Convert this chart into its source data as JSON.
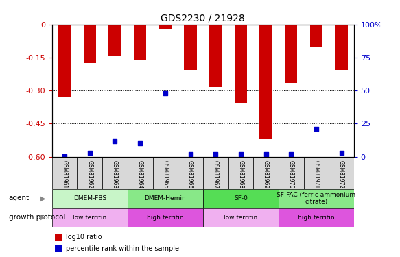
{
  "title": "GDS2230 / 21928",
  "samples": [
    "GSM81961",
    "GSM81962",
    "GSM81963",
    "GSM81964",
    "GSM81965",
    "GSM81966",
    "GSM81967",
    "GSM81968",
    "GSM81969",
    "GSM81970",
    "GSM81971",
    "GSM81972"
  ],
  "log10_ratio": [
    -0.33,
    -0.175,
    -0.145,
    -0.16,
    -0.02,
    -0.205,
    -0.285,
    -0.355,
    -0.52,
    -0.265,
    -0.1,
    -0.205
  ],
  "percentile_rank": [
    0.5,
    3.0,
    12.0,
    10.0,
    48.0,
    2.0,
    2.0,
    2.0,
    2.0,
    2.0,
    21.0,
    3.0
  ],
  "ylim_left": [
    -0.6,
    0.0
  ],
  "ylim_right": [
    0,
    100
  ],
  "yticks_left": [
    0.0,
    -0.15,
    -0.3,
    -0.45,
    -0.6
  ],
  "ytick_labels_left": [
    "0",
    "-0.15",
    "-0.30",
    "-0.45",
    "-0.60"
  ],
  "yticks_right": [
    0,
    25,
    50,
    75,
    100
  ],
  "ytick_labels_right": [
    "0",
    "25",
    "50",
    "75",
    "100%"
  ],
  "agent_groups": [
    {
      "label": "DMEM-FBS",
      "start": 0,
      "end": 3,
      "color": "#c8f5c8"
    },
    {
      "label": "DMEM-Hemin",
      "start": 3,
      "end": 6,
      "color": "#88e888"
    },
    {
      "label": "SF-0",
      "start": 6,
      "end": 9,
      "color": "#55dd55"
    },
    {
      "label": "SF-FAC (ferric ammonium\ncitrate)",
      "start": 9,
      "end": 12,
      "color": "#88e888"
    }
  ],
  "protocol_groups": [
    {
      "label": "low ferritin",
      "start": 0,
      "end": 3,
      "color": "#f0b0f0"
    },
    {
      "label": "high ferritin",
      "start": 3,
      "end": 6,
      "color": "#dd55dd"
    },
    {
      "label": "low ferritin",
      "start": 6,
      "end": 9,
      "color": "#f0b0f0"
    },
    {
      "label": "high ferritin",
      "start": 9,
      "end": 12,
      "color": "#dd55dd"
    }
  ],
  "bar_color": "#cc0000",
  "blue_color": "#0000cc",
  "left_axis_color": "#cc0000",
  "right_axis_color": "#0000cc",
  "background_color": "#ffffff",
  "bar_width": 0.5,
  "legend_red_label": "log10 ratio",
  "legend_blue_label": "percentile rank within the sample",
  "agent_label": "agent",
  "protocol_label": "growth protocol"
}
